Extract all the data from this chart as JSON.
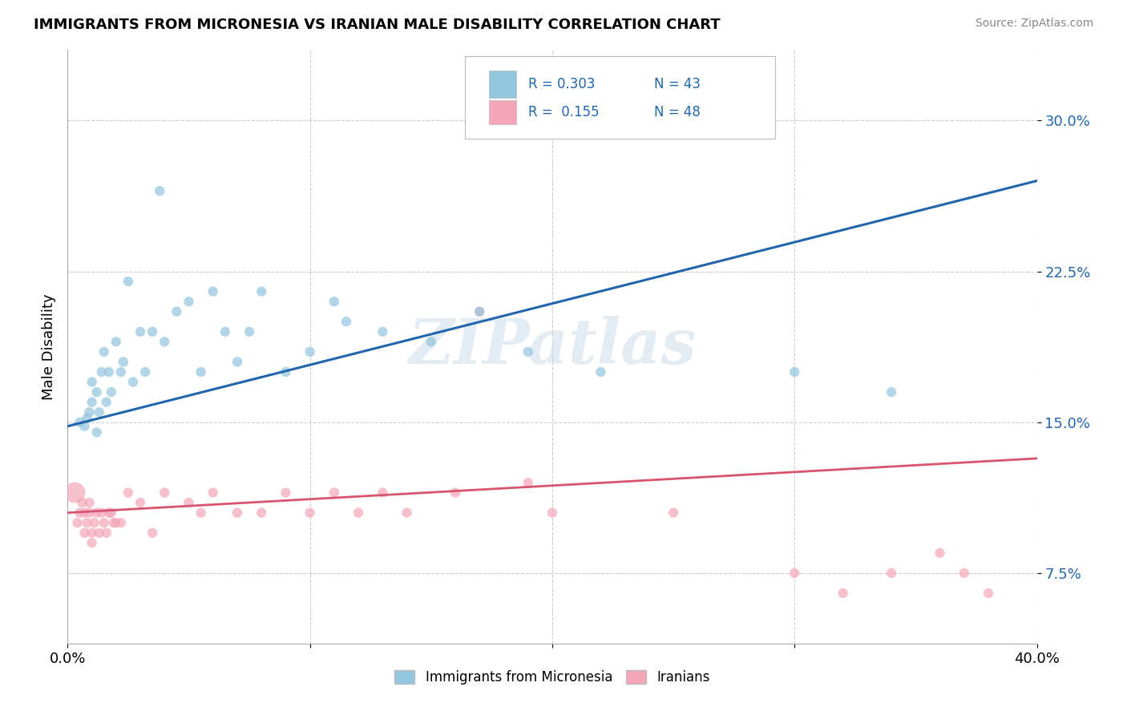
{
  "title": "IMMIGRANTS FROM MICRONESIA VS IRANIAN MALE DISABILITY CORRELATION CHART",
  "source": "Source: ZipAtlas.com",
  "ylabel": "Male Disability",
  "ytick_labels": [
    "7.5%",
    "15.0%",
    "22.5%",
    "30.0%"
  ],
  "ytick_values": [
    0.075,
    0.15,
    0.225,
    0.3
  ],
  "xlim": [
    0.0,
    0.4
  ],
  "ylim": [
    0.04,
    0.335
  ],
  "legend_r1": "R = 0.303",
  "legend_n1": "N = 43",
  "legend_r2": "R =  0.155",
  "legend_n2": "N = 48",
  "blue_color": "#92c5de",
  "pink_color": "#f4a6b8",
  "blue_line_color": "#2166ac",
  "pink_line_color": "#d6546e",
  "background_color": "#ffffff",
  "watermark_text": "ZIPatlas",
  "blue_x": [
    0.005,
    0.007,
    0.008,
    0.009,
    0.01,
    0.01,
    0.012,
    0.012,
    0.013,
    0.014,
    0.015,
    0.016,
    0.017,
    0.018,
    0.02,
    0.022,
    0.023,
    0.025,
    0.027,
    0.03,
    0.032,
    0.035,
    0.038,
    0.04,
    0.045,
    0.05,
    0.055,
    0.06,
    0.065,
    0.07,
    0.075,
    0.08,
    0.09,
    0.1,
    0.11,
    0.115,
    0.13,
    0.15,
    0.17,
    0.19,
    0.22,
    0.3,
    0.34
  ],
  "blue_y": [
    0.15,
    0.148,
    0.152,
    0.155,
    0.16,
    0.17,
    0.145,
    0.165,
    0.155,
    0.175,
    0.185,
    0.16,
    0.175,
    0.165,
    0.19,
    0.175,
    0.18,
    0.22,
    0.17,
    0.195,
    0.175,
    0.195,
    0.265,
    0.19,
    0.205,
    0.21,
    0.175,
    0.215,
    0.195,
    0.18,
    0.195,
    0.215,
    0.175,
    0.185,
    0.21,
    0.2,
    0.195,
    0.19,
    0.205,
    0.185,
    0.175,
    0.175,
    0.165
  ],
  "blue_sizes": [
    80,
    80,
    80,
    80,
    80,
    80,
    80,
    80,
    80,
    80,
    80,
    80,
    80,
    80,
    80,
    80,
    80,
    80,
    80,
    80,
    80,
    80,
    80,
    80,
    80,
    80,
    80,
    80,
    80,
    80,
    80,
    80,
    80,
    80,
    80,
    80,
    80,
    80,
    80,
    80,
    80,
    80,
    80
  ],
  "pink_x": [
    0.003,
    0.004,
    0.005,
    0.006,
    0.007,
    0.007,
    0.008,
    0.009,
    0.009,
    0.01,
    0.01,
    0.011,
    0.012,
    0.013,
    0.014,
    0.015,
    0.016,
    0.017,
    0.018,
    0.019,
    0.02,
    0.022,
    0.025,
    0.03,
    0.035,
    0.04,
    0.05,
    0.055,
    0.06,
    0.07,
    0.08,
    0.09,
    0.1,
    0.11,
    0.12,
    0.13,
    0.14,
    0.16,
    0.17,
    0.19,
    0.2,
    0.25,
    0.3,
    0.32,
    0.34,
    0.36,
    0.37,
    0.38
  ],
  "pink_y": [
    0.115,
    0.1,
    0.105,
    0.11,
    0.095,
    0.105,
    0.1,
    0.105,
    0.11,
    0.09,
    0.095,
    0.1,
    0.105,
    0.095,
    0.105,
    0.1,
    0.095,
    0.105,
    0.105,
    0.1,
    0.1,
    0.1,
    0.115,
    0.11,
    0.095,
    0.115,
    0.11,
    0.105,
    0.115,
    0.105,
    0.105,
    0.115,
    0.105,
    0.115,
    0.105,
    0.115,
    0.105,
    0.115,
    0.205,
    0.12,
    0.105,
    0.105,
    0.075,
    0.065,
    0.075,
    0.085,
    0.075,
    0.065
  ],
  "pink_sizes": [
    350,
    80,
    80,
    80,
    80,
    80,
    80,
    80,
    80,
    80,
    80,
    80,
    80,
    80,
    80,
    80,
    80,
    80,
    80,
    80,
    80,
    80,
    80,
    80,
    80,
    80,
    80,
    80,
    80,
    80,
    80,
    80,
    80,
    80,
    80,
    80,
    80,
    80,
    80,
    80,
    80,
    80,
    80,
    80,
    80,
    80,
    80,
    80
  ],
  "blue_line_x0": 0.0,
  "blue_line_y0": 0.148,
  "blue_line_x1": 0.4,
  "blue_line_y1": 0.27,
  "pink_line_x0": 0.0,
  "pink_line_y0": 0.105,
  "pink_line_x1": 0.4,
  "pink_line_y1": 0.132
}
